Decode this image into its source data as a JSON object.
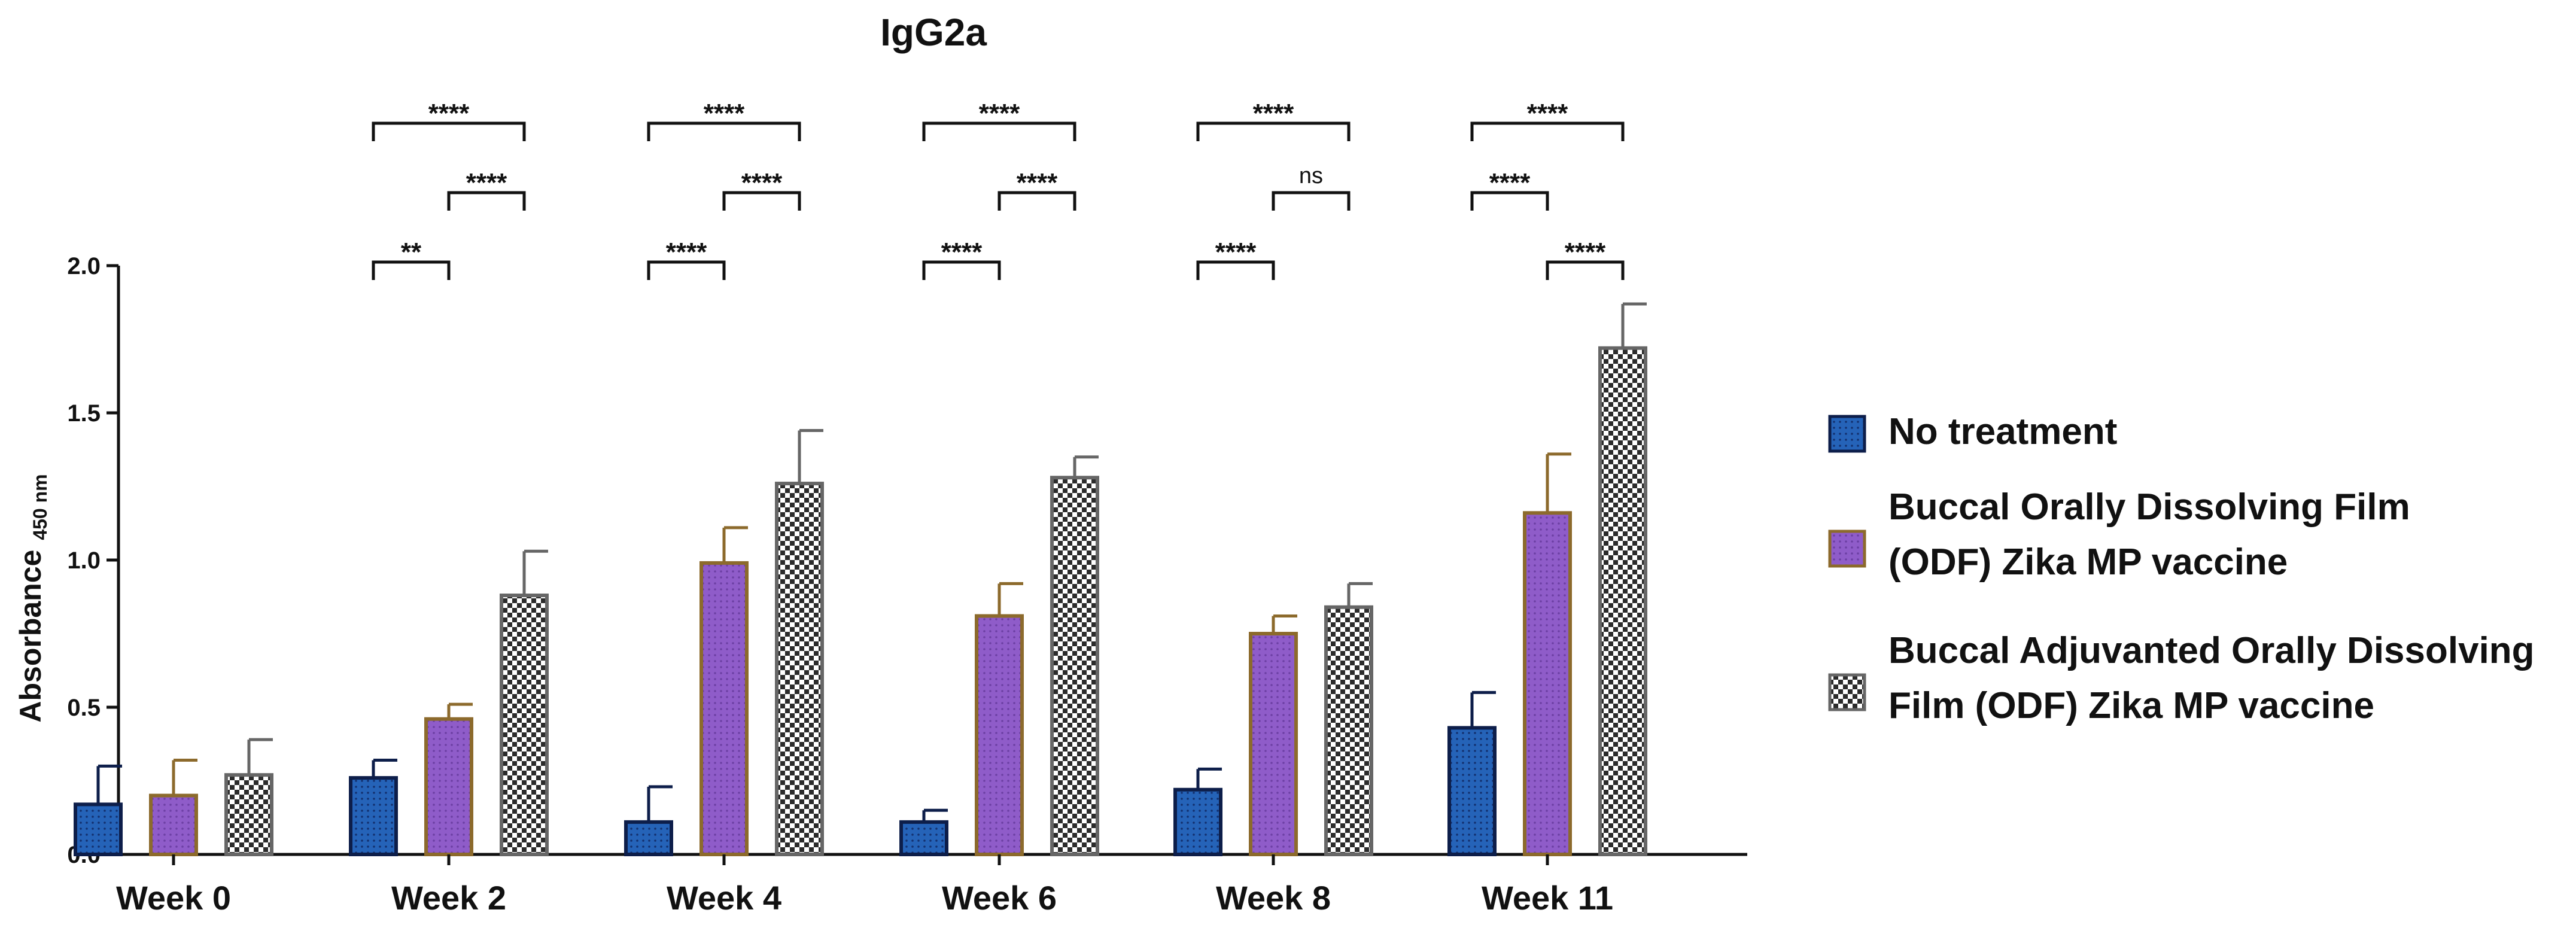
{
  "chart_data": {
    "type": "bar",
    "title": "IgG2a",
    "xlabel": "",
    "ylabel": "Absorbance",
    "ylabel_subscript": "450 nm",
    "ylim": [
      0,
      2.0
    ],
    "yticks": [
      "0.0",
      "0.5",
      "1.0",
      "1.5",
      "2.0"
    ],
    "grid": false,
    "legend_position": "right",
    "categories": [
      "Week 0",
      "Week 2",
      "Week 4",
      "Week 6",
      "Week 8",
      "Week 11"
    ],
    "series": [
      {
        "name": "No treatment",
        "legend_lines": [
          "No treatment"
        ],
        "fill": "#2563b8",
        "stroke": "#0d1e4a",
        "pattern": "dots",
        "values": [
          0.17,
          0.26,
          0.11,
          0.11,
          0.22,
          0.43
        ],
        "errors": [
          0.13,
          0.06,
          0.12,
          0.04,
          0.07,
          0.12
        ]
      },
      {
        "name": "Buccal Orally Dissolving Film (ODF) Zika MP vaccine",
        "legend_lines": [
          "Buccal Orally Dissolving Film",
          "(ODF) Zika MP vaccine"
        ],
        "fill": "#8f5cc9",
        "stroke": "#8c6a2c",
        "pattern": "dots",
        "values": [
          0.2,
          0.46,
          0.99,
          0.81,
          0.75,
          1.16
        ],
        "errors": [
          0.12,
          0.05,
          0.12,
          0.11,
          0.06,
          0.2
        ]
      },
      {
        "name": "Buccal Adjuvanted Orally Dissolving Film (ODF) Zika MP vaccine",
        "legend_lines": [
          "Buccal Adjuvanted Orally Dissolving",
          "Film (ODF) Zika MP vaccine"
        ],
        "fill": "#ffffff",
        "stroke": "#666666",
        "pattern": "checker",
        "values": [
          0.27,
          0.88,
          1.26,
          1.28,
          0.84,
          1.72
        ],
        "errors": [
          0.12,
          0.15,
          0.18,
          0.07,
          0.08,
          0.15
        ]
      }
    ],
    "significance": [
      {
        "category": "Week 2",
        "brackets": [
          {
            "from": 0,
            "to": 2,
            "label": "****"
          },
          {
            "from": 1,
            "to": 2,
            "label": "****"
          },
          {
            "from": 0,
            "to": 1,
            "label": "**"
          }
        ]
      },
      {
        "category": "Week 4",
        "brackets": [
          {
            "from": 0,
            "to": 2,
            "label": "****"
          },
          {
            "from": 1,
            "to": 2,
            "label": "****"
          },
          {
            "from": 0,
            "to": 1,
            "label": "****"
          }
        ]
      },
      {
        "category": "Week 6",
        "brackets": [
          {
            "from": 0,
            "to": 2,
            "label": "****"
          },
          {
            "from": 1,
            "to": 2,
            "label": "****"
          },
          {
            "from": 0,
            "to": 1,
            "label": "****"
          }
        ]
      },
      {
        "category": "Week 8",
        "brackets": [
          {
            "from": 0,
            "to": 2,
            "label": "****"
          },
          {
            "from": 1,
            "to": 2,
            "label": "ns"
          },
          {
            "from": 0,
            "to": 1,
            "label": "****"
          }
        ]
      },
      {
        "category": "Week 11",
        "brackets": [
          {
            "from": 0,
            "to": 2,
            "label": "****"
          },
          {
            "from": 0,
            "to": 1,
            "label": "****"
          },
          {
            "from": 1,
            "to": 2,
            "label": "****"
          }
        ]
      }
    ]
  }
}
